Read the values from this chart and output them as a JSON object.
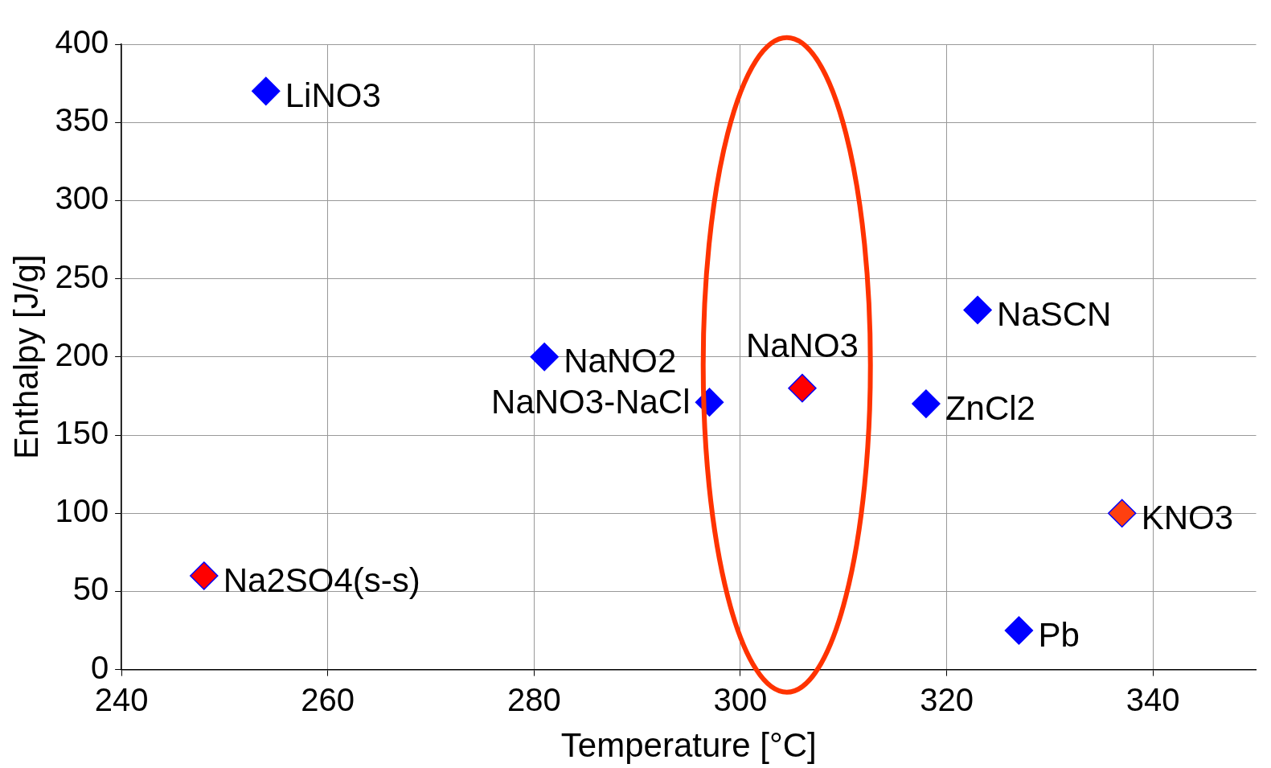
{
  "chart_data": {
    "type": "scatter",
    "xlabel": "Temperature [°C]",
    "ylabel": "Enthalpy [J/g]",
    "x": [
      254,
      281,
      297,
      306,
      318,
      323,
      337,
      327,
      248
    ],
    "series": [
      {
        "values": [
          370,
          200,
          171,
          180,
          170,
          230,
          100,
          25,
          60
        ],
        "colors": [
          "#0000ff",
          "#0000ff",
          "#0000ff",
          "#ff0000",
          "#0000ff",
          "#0000ff",
          "#ff4010",
          "#0000ff",
          "#ff0000"
        ]
      }
    ],
    "annotations": [
      {
        "text": "LiNO3",
        "x": 254,
        "y": 370
      },
      {
        "text": "NaNO2",
        "x": 281,
        "y": 200
      },
      {
        "text": "NaNO3-NaCl",
        "x": 297,
        "y": 171
      },
      {
        "text": "NaNO3",
        "x": 306,
        "y": 180
      },
      {
        "text": "ZnCl2",
        "x": 318,
        "y": 170
      },
      {
        "text": "NaSCN",
        "x": 323,
        "y": 230
      },
      {
        "text": "KNO3",
        "x": 337,
        "y": 100
      },
      {
        "text": "Pb",
        "x": 327,
        "y": 25
      },
      {
        "text": "Na2SO4(s-s)",
        "x": 248,
        "y": 60
      }
    ],
    "xlim": [
      240,
      350
    ],
    "xticks": [
      240,
      260,
      280,
      300,
      320,
      340
    ],
    "ylim": [
      0,
      400
    ],
    "yticks": [
      0,
      50,
      100,
      150,
      200,
      250,
      300,
      350,
      400
    ],
    "grid": true,
    "legend": false,
    "marker": "diamond"
  }
}
